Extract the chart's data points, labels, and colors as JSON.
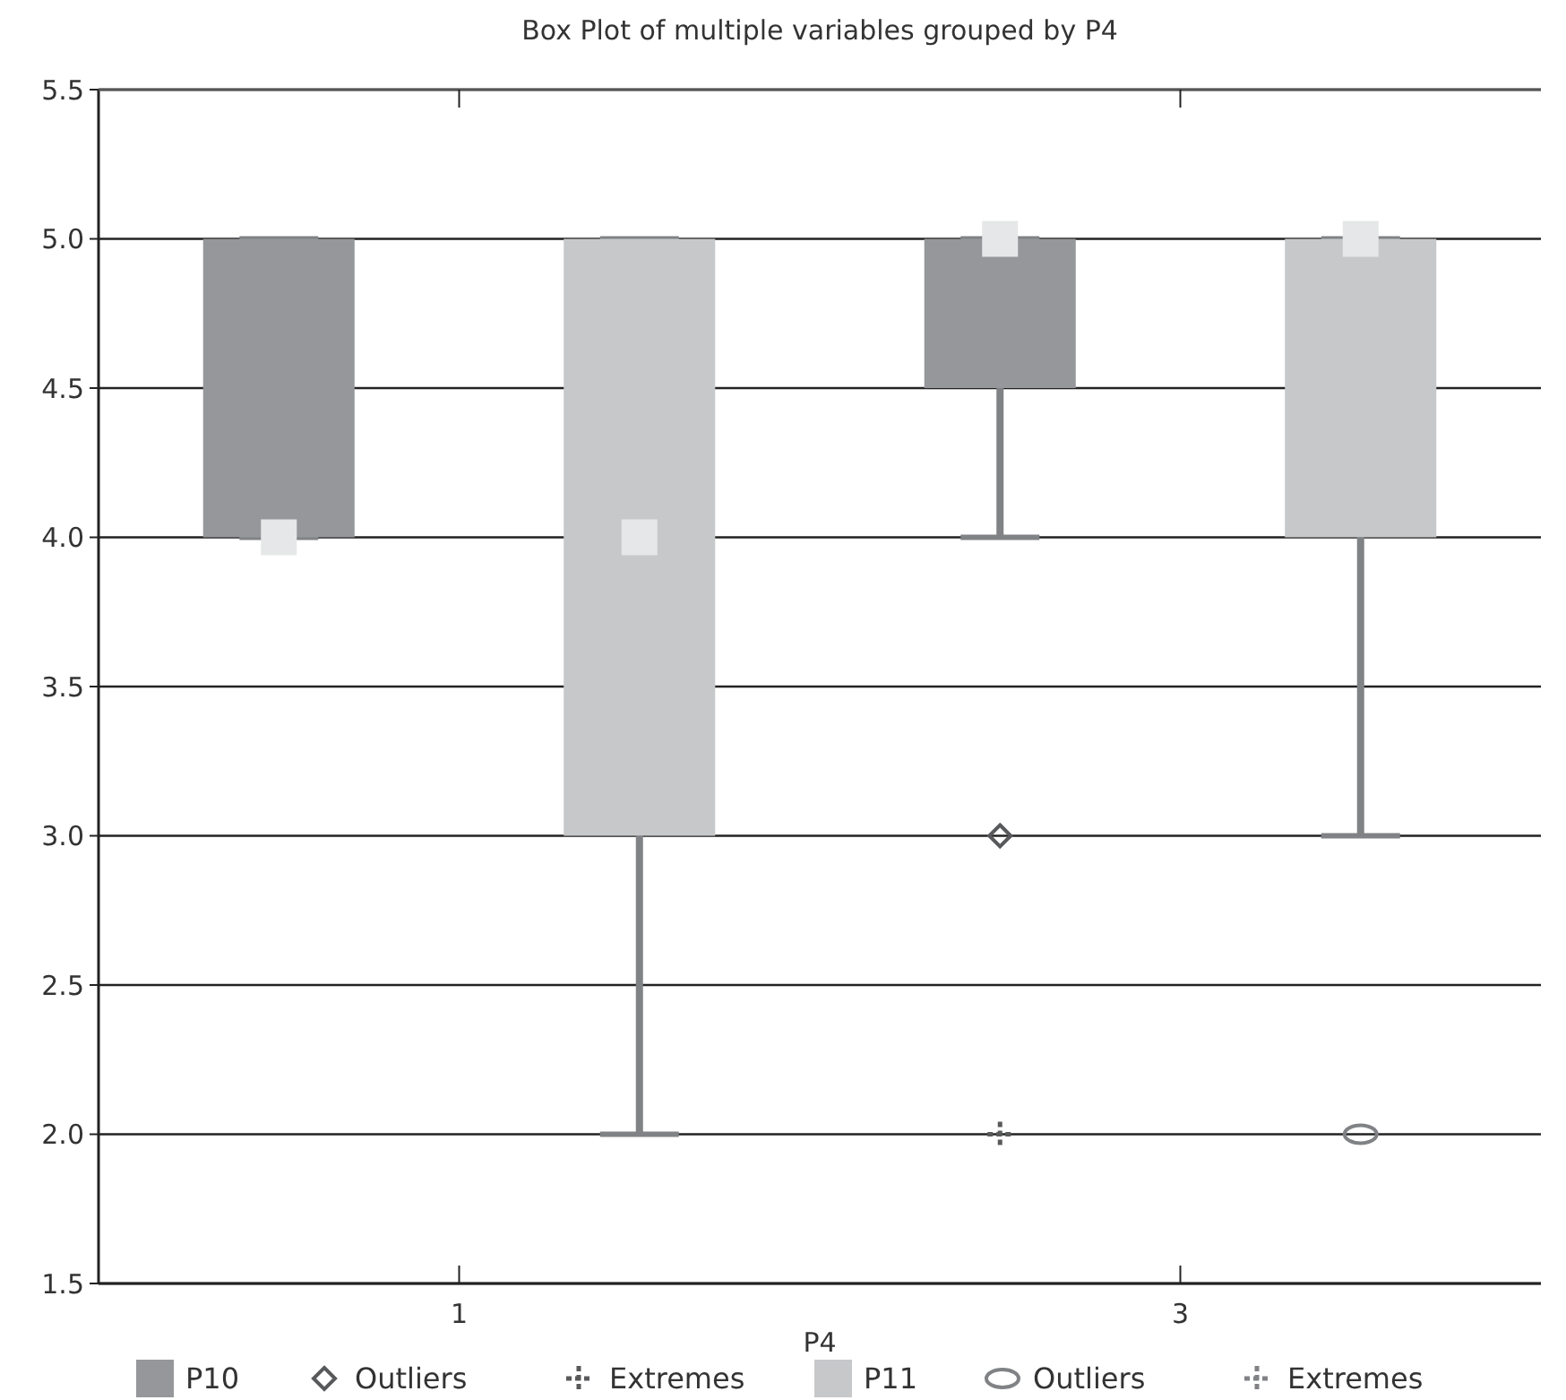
{
  "chart_data": {
    "type": "box",
    "title": "Box Plot of multiple variables grouped by P4",
    "xlabel": "P4",
    "categories": [
      "1",
      "3"
    ],
    "ylim": [
      1.5,
      5.5
    ],
    "yticks": [
      1.5,
      {
        "value": 2,
        "label": "2.0"
      },
      2.5,
      {
        "value": 3,
        "label": "3.0"
      },
      3.5,
      {
        "value": 4,
        "label": "4.0"
      },
      4.5,
      {
        "value": 5,
        "label": "5.0"
      },
      5.5
    ],
    "grid": "y",
    "legend": "bottom",
    "series": [
      {
        "name": "P10",
        "color": "#96979a",
        "boxes": [
          {
            "low": 4,
            "q1": 4,
            "median": 4,
            "q3": 5,
            "high": 5
          },
          {
            "low": 4,
            "q1": 4.5,
            "median": 5,
            "q3": 5,
            "high": 5
          }
        ]
      },
      {
        "name": "Outliers",
        "type": "scatter",
        "marker": "diamond",
        "color": "#58595b",
        "x": [
          "3"
        ],
        "values": [
          3
        ]
      },
      {
        "name": "Extremes",
        "type": "scatter",
        "marker": "cross",
        "color": "#58595b",
        "x": [
          "3"
        ],
        "values": [
          2
        ]
      },
      {
        "name": "P11",
        "color": "#c7c8ca",
        "boxes": [
          {
            "low": 2,
            "q1": 3,
            "median": 4,
            "q3": 5,
            "high": 5
          },
          {
            "low": 3,
            "q1": 4,
            "median": 5,
            "q3": 5,
            "high": 5
          }
        ]
      },
      {
        "name": "Outliers",
        "type": "scatter",
        "marker": "circle",
        "color": "#808285",
        "x": [
          "3"
        ],
        "values": [
          2
        ]
      },
      {
        "name": "Extremes",
        "type": "scatter",
        "marker": "cross",
        "color": "#808285",
        "x": [
          "1",
          "3"
        ],
        "values": [
          null,
          null
        ]
      }
    ]
  }
}
